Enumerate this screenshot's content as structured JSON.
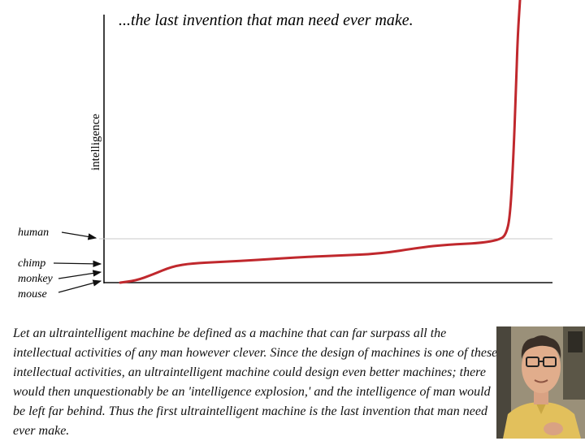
{
  "chart_data": {
    "type": "line",
    "title": "...the last invention that man need ever make.",
    "xlabel": "",
    "ylabel": "intelligence",
    "levels": [
      {
        "label": "human",
        "value": 1.0
      },
      {
        "label": "chimp",
        "value": 0.4
      },
      {
        "label": "monkey",
        "value": 0.1
      },
      {
        "label": "mouse",
        "value": 0.0
      }
    ],
    "series": [
      {
        "x": [
          0,
          0.04,
          0.08,
          0.13,
          0.18,
          0.25,
          0.35,
          0.45,
          0.55,
          0.65,
          0.75,
          0.82,
          0.9,
          0.95,
          0.965,
          0.975,
          0.983,
          0.99,
          0.994,
          1.0
        ],
        "y": [
          0.0,
          0.05,
          0.18,
          0.37,
          0.44,
          0.47,
          0.52,
          0.58,
          0.62,
          0.66,
          0.8,
          0.87,
          0.9,
          0.98,
          1.1,
          1.5,
          2.8,
          4.5,
          5.7,
          6.6
        ]
      }
    ],
    "xlim": [
      0,
      1
    ],
    "ylim": [
      0,
      6.6
    ],
    "grid": false,
    "line_color": "#c0282d",
    "reference_line_color": "#c8c8c8"
  },
  "quote": "Let an ultraintelligent machine be defined as a machine that can far surpass all the intellectual activities of any man however clever. Since the design of machines is one of these intellectual activities, an ultraintelligent machine could design even better machines; there would then unquestionably be an 'intelligence explosion,' and the intelligence of man would be left far behind. Thus the first ultraintelligent machine is the last invention that man need ever make.",
  "portrait": {
    "icon": "portrait-photo-icon"
  }
}
